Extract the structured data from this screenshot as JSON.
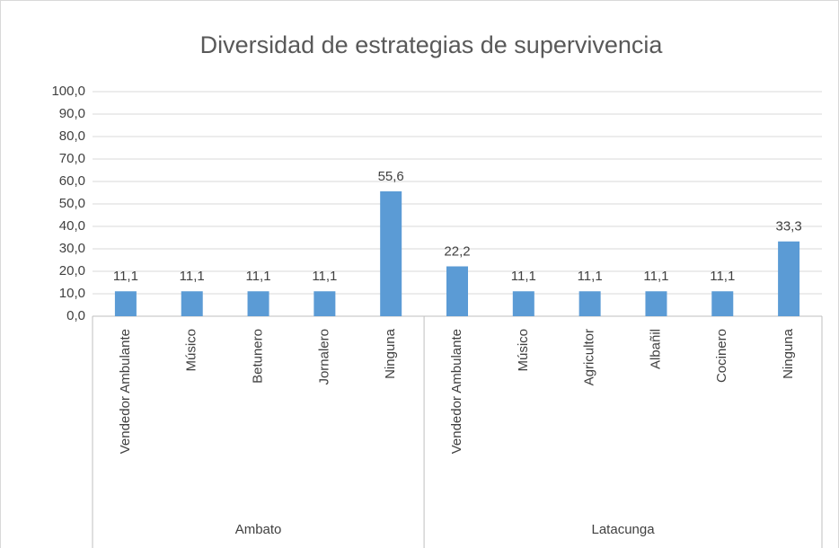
{
  "chart_data": {
    "type": "bar",
    "title": "Diversidad de estrategias de supervivencia",
    "color": "#5b9bd5",
    "grid": true,
    "ylim": [
      0,
      100
    ],
    "yticks": [
      {
        "value": 0,
        "label": "0,0"
      },
      {
        "value": 10,
        "label": "10,0"
      },
      {
        "value": 20,
        "label": "20,0"
      },
      {
        "value": 30,
        "label": "30,0"
      },
      {
        "value": 40,
        "label": "40,0"
      },
      {
        "value": 50,
        "label": "50,0"
      },
      {
        "value": 60,
        "label": "60,0"
      },
      {
        "value": 70,
        "label": "70,0"
      },
      {
        "value": 80,
        "label": "80,0"
      },
      {
        "value": 90,
        "label": "90,0"
      },
      {
        "value": 100,
        "label": "100,0"
      }
    ],
    "groups": [
      {
        "name": "Ambato",
        "categories": [
          "Vendedor Ambulante",
          "Músico",
          "Betunero",
          "Jornalero",
          "Ninguna"
        ],
        "values": [
          11.1,
          11.1,
          11.1,
          11.1,
          55.6
        ],
        "value_labels": [
          "11,1",
          "11,1",
          "11,1",
          "11,1",
          "55,6"
        ]
      },
      {
        "name": "Latacunga",
        "categories": [
          "Vendedor Ambulante",
          "Músico",
          "Agricultor",
          "Albañil",
          "Cocinero",
          "Ninguna"
        ],
        "values": [
          22.2,
          11.1,
          11.1,
          11.1,
          11.1,
          33.3
        ],
        "value_labels": [
          "22,2",
          "11,1",
          "11,1",
          "11,1",
          "11,1",
          "33,3"
        ]
      }
    ]
  }
}
